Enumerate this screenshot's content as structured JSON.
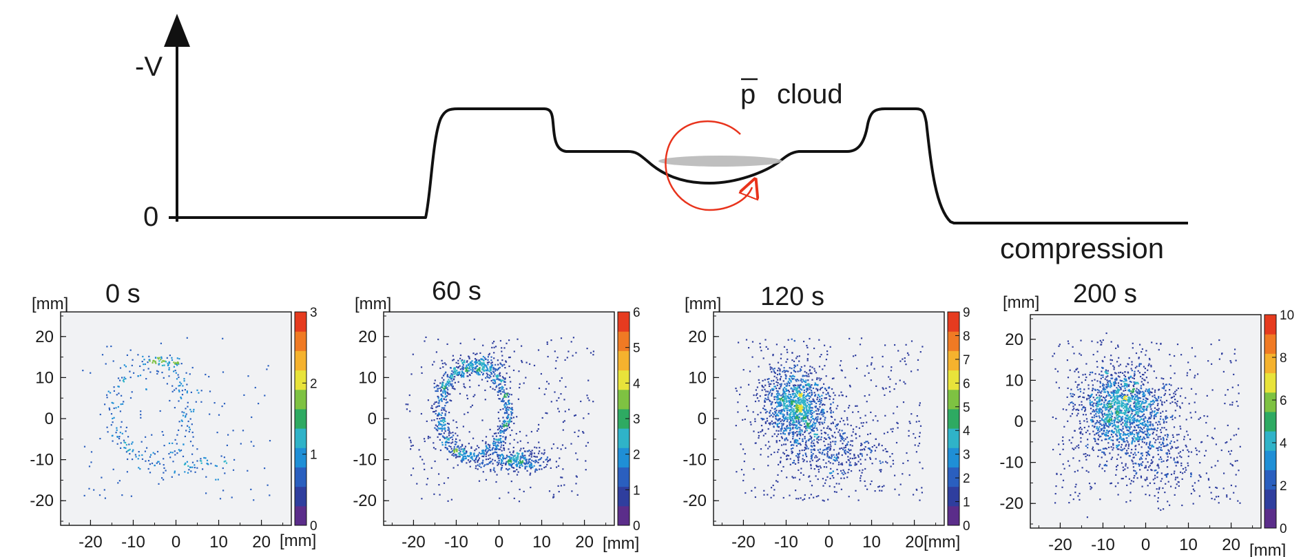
{
  "potential_diagram": {
    "y_axis_label": "-V",
    "zero_label": "0",
    "cloud_symbol": "p",
    "cloud_label": "cloud",
    "caption": "compression",
    "colors": {
      "curve": "#111111",
      "cloud": "#b8b8b8",
      "arrow": "#e8331c"
    }
  },
  "chart_data": [
    {
      "type": "heatmap",
      "title": "0 s",
      "xlabel": "[mm]",
      "ylabel": "[mm]",
      "xlim": [
        -27,
        27
      ],
      "ylim": [
        -26,
        26
      ],
      "xticks": [
        "-20",
        "-10",
        "0",
        "10",
        "20"
      ],
      "yticks": [
        "20",
        "10",
        "0",
        "-10",
        "-20"
      ],
      "colorbar_ticks": [
        "0",
        "1",
        "2",
        "3"
      ],
      "colorbar_max": 3,
      "distribution": [
        {
          "shape": "ring",
          "center": [
            -6,
            2
          ],
          "radius": [
            9,
            12
          ],
          "weight": 0.48
        },
        {
          "shape": "blob",
          "center": [
            4,
            -11
          ],
          "sigma": [
            4,
            1.8
          ],
          "weight": 0.12
        },
        {
          "shape": "blob",
          "center": [
            -2,
            14
          ],
          "sigma": [
            1.5,
            0.8
          ],
          "weight": 0.08
        },
        {
          "shape": "uniform",
          "weight": 0.32
        }
      ],
      "points": 420,
      "peak": 1.5
    },
    {
      "type": "heatmap",
      "title": "60 s",
      "xlabel": "[mm]",
      "ylabel": "[mm]",
      "xlim": [
        -27,
        27
      ],
      "ylim": [
        -26,
        26
      ],
      "xticks": [
        "-20",
        "-10",
        "0",
        "10",
        "20"
      ],
      "yticks": [
        "20",
        "10",
        "0",
        "-10",
        "-20"
      ],
      "colorbar_ticks": [
        "0",
        "1",
        "2",
        "3",
        "4",
        "5",
        "6"
      ],
      "colorbar_max": 6,
      "distribution": [
        {
          "shape": "ring",
          "center": [
            -6,
            2
          ],
          "radius": [
            8,
            11
          ],
          "weight": 0.55
        },
        {
          "shape": "blob",
          "center": [
            4,
            -10
          ],
          "sigma": [
            4,
            1.5
          ],
          "weight": 0.18
        },
        {
          "shape": "blob",
          "center": [
            -4,
            13
          ],
          "sigma": [
            3,
            1.2
          ],
          "weight": 0.07
        },
        {
          "shape": "uniform",
          "weight": 0.2
        }
      ],
      "points": 1500,
      "peak": 3
    },
    {
      "type": "heatmap",
      "title": "120 s",
      "xlabel": "[mm]",
      "ylabel": "[mm]",
      "xlim": [
        -27,
        27
      ],
      "ylim": [
        -26,
        26
      ],
      "xticks": [
        "-20",
        "-10",
        "0",
        "10",
        "20"
      ],
      "yticks": [
        "20",
        "10",
        "0",
        "-10",
        "-20"
      ],
      "colorbar_ticks": [
        "0",
        "1",
        "2",
        "3",
        "4",
        "5",
        "6",
        "7",
        "8",
        "9"
      ],
      "colorbar_max": 9,
      "distribution": [
        {
          "shape": "blob",
          "center": [
            -8,
            3
          ],
          "sigma": [
            4,
            5
          ],
          "weight": 0.62
        },
        {
          "shape": "blob",
          "center": [
            2,
            -8
          ],
          "sigma": [
            6,
            4
          ],
          "weight": 0.18
        },
        {
          "shape": "uniform",
          "weight": 0.2
        }
      ],
      "points": 1800,
      "peak": 6
    },
    {
      "type": "heatmap",
      "title": "200 s",
      "xlabel": "[mm]",
      "ylabel": "[mm]",
      "xlim": [
        -27,
        27
      ],
      "ylim": [
        -26,
        26
      ],
      "xticks": [
        "-20",
        "-10",
        "0",
        "10",
        "20"
      ],
      "yticks": [
        "20",
        "10",
        "0",
        "-10",
        "-20"
      ],
      "colorbar_ticks": [
        "0",
        "2",
        "4",
        "6",
        "8",
        "10"
      ],
      "colorbar_max": 10,
      "distribution": [
        {
          "shape": "blob",
          "center": [
            -6,
            3
          ],
          "sigma": [
            5,
            5
          ],
          "weight": 0.65
        },
        {
          "shape": "blob",
          "center": [
            2,
            -8
          ],
          "sigma": [
            6,
            5
          ],
          "weight": 0.15
        },
        {
          "shape": "uniform",
          "weight": 0.2
        }
      ],
      "points": 2000,
      "peak": 6
    }
  ],
  "colormap": [
    "#5b2d8a",
    "#2f3e9e",
    "#2a5fbf",
    "#1f8fd6",
    "#2fb3c8",
    "#2eaa62",
    "#7ec242",
    "#e8e33a",
    "#f5b22e",
    "#f07a24",
    "#e63b1f"
  ]
}
